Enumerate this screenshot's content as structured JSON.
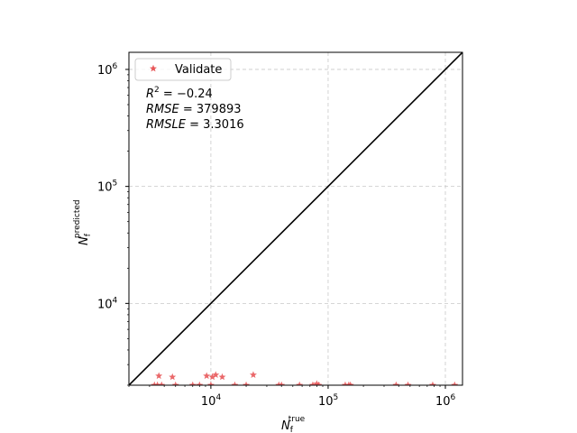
{
  "chart_data": {
    "type": "scatter",
    "xscale": "log",
    "yscale": "log",
    "xlim": [
      2000,
      1400000
    ],
    "ylim": [
      2000,
      1400000
    ],
    "xlabel": {
      "base": "N",
      "sub": "f",
      "sup": "true"
    },
    "ylabel": {
      "base": "N",
      "sub": "f",
      "sup": "predicted"
    },
    "grid": true,
    "legend": {
      "location": "top-left",
      "label": "Validate",
      "marker": "star"
    },
    "colors": {
      "points": "#e8585a",
      "identity_line": "#000000",
      "grid": "#c8c8c8"
    },
    "x_ticks": [
      {
        "value": 10000,
        "base": "10",
        "exp": "4"
      },
      {
        "value": 100000,
        "base": "10",
        "exp": "5"
      },
      {
        "value": 1000000,
        "base": "10",
        "exp": "6"
      }
    ],
    "y_ticks": [
      {
        "value": 10000,
        "base": "10",
        "exp": "4"
      },
      {
        "value": 100000,
        "base": "10",
        "exp": "5"
      },
      {
        "value": 1000000,
        "base": "10",
        "exp": "6"
      }
    ],
    "identity_line": {
      "from": 2000,
      "to": 1400000
    },
    "metrics": [
      {
        "name": "R",
        "sup": "2",
        "eq": " = −0.24"
      },
      {
        "name": "RMSE",
        "sup": "",
        "eq": " = 379893"
      },
      {
        "name": "RMSLE",
        "sup": "",
        "eq": " = 3.3016"
      }
    ],
    "series": [
      {
        "name": "Validate",
        "points": [
          {
            "x": 3300,
            "y": 2000
          },
          {
            "x": 3500,
            "y": 2000
          },
          {
            "x": 3600,
            "y": 2400
          },
          {
            "x": 3800,
            "y": 2000
          },
          {
            "x": 4700,
            "y": 2350
          },
          {
            "x": 5000,
            "y": 2000
          },
          {
            "x": 7000,
            "y": 2000
          },
          {
            "x": 8000,
            "y": 2000
          },
          {
            "x": 9200,
            "y": 2400
          },
          {
            "x": 10000,
            "y": 2000
          },
          {
            "x": 10300,
            "y": 2350
          },
          {
            "x": 11000,
            "y": 2450
          },
          {
            "x": 12500,
            "y": 2350
          },
          {
            "x": 16000,
            "y": 2000
          },
          {
            "x": 20000,
            "y": 2000
          },
          {
            "x": 23000,
            "y": 2450
          },
          {
            "x": 38000,
            "y": 2000
          },
          {
            "x": 40000,
            "y": 2000
          },
          {
            "x": 57000,
            "y": 2000
          },
          {
            "x": 74000,
            "y": 2000
          },
          {
            "x": 80000,
            "y": 2050
          },
          {
            "x": 83000,
            "y": 2000
          },
          {
            "x": 140000,
            "y": 2000
          },
          {
            "x": 150000,
            "y": 2000
          },
          {
            "x": 155000,
            "y": 2000
          },
          {
            "x": 380000,
            "y": 2000
          },
          {
            "x": 480000,
            "y": 2000
          },
          {
            "x": 780000,
            "y": 2000
          },
          {
            "x": 1200000,
            "y": 2000
          }
        ]
      }
    ]
  }
}
